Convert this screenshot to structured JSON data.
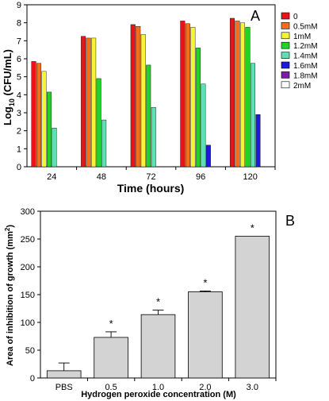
{
  "chart_data": [
    {
      "type": "bar",
      "panel_label": "A",
      "xlabel": "Time (hours)",
      "ylabel_parts": [
        "Log",
        "10",
        " (CFU/mL)"
      ],
      "ylim": [
        0,
        9
      ],
      "yticks": [
        "0",
        "1",
        "2",
        "3",
        "4",
        "5",
        "6",
        "7",
        "8",
        "9"
      ],
      "categories": [
        "24",
        "48",
        "72",
        "96",
        "120"
      ],
      "grid": false,
      "legend_position": "right",
      "series": [
        {
          "name": "0",
          "color": "#e8141b",
          "values": [
            5.85,
            7.25,
            7.9,
            8.1,
            8.25
          ]
        },
        {
          "name": "0.5mM",
          "color": "#f36f1b",
          "values": [
            5.75,
            7.15,
            7.8,
            7.95,
            8.1
          ]
        },
        {
          "name": "1mM",
          "color": "#f5f536",
          "values": [
            5.3,
            7.15,
            7.35,
            7.75,
            8.0
          ]
        },
        {
          "name": "1.2mM",
          "color": "#22d228",
          "values": [
            4.15,
            4.9,
            5.65,
            6.6,
            7.75
          ]
        },
        {
          "name": "1.4mM",
          "color": "#5fe0b3",
          "values": [
            2.15,
            2.6,
            3.3,
            4.6,
            5.75
          ]
        },
        {
          "name": "1.6mM",
          "color": "#1b1bd9",
          "values": [
            0,
            0,
            0,
            1.2,
            2.9
          ]
        },
        {
          "name": "1.8mM",
          "color": "#7d1da3",
          "values": [
            0,
            0,
            0,
            0,
            0
          ]
        },
        {
          "name": "2mM",
          "color": "#ffffff",
          "values": [
            0,
            0,
            0,
            0,
            0
          ]
        }
      ]
    },
    {
      "type": "bar",
      "panel_label": "B",
      "xlabel": "Hydrogen peroxide concentration (M)",
      "ylabel_parts": [
        "Area of inhibition of growth (mm",
        "2",
        ")"
      ],
      "ylim": [
        0,
        300
      ],
      "yticks": [
        "0",
        "50",
        "100",
        "150",
        "200",
        "250",
        "300"
      ],
      "categories": [
        "PBS",
        "0.5",
        "1.0",
        "2.0",
        "3.0"
      ],
      "values": [
        13,
        73,
        114,
        155,
        255
      ],
      "errors": [
        14,
        10,
        8,
        1.5,
        0
      ],
      "significance": [
        "",
        "*",
        "*",
        "*",
        "*"
      ],
      "bar_color": "#d3d3d3",
      "grid": false
    }
  ]
}
